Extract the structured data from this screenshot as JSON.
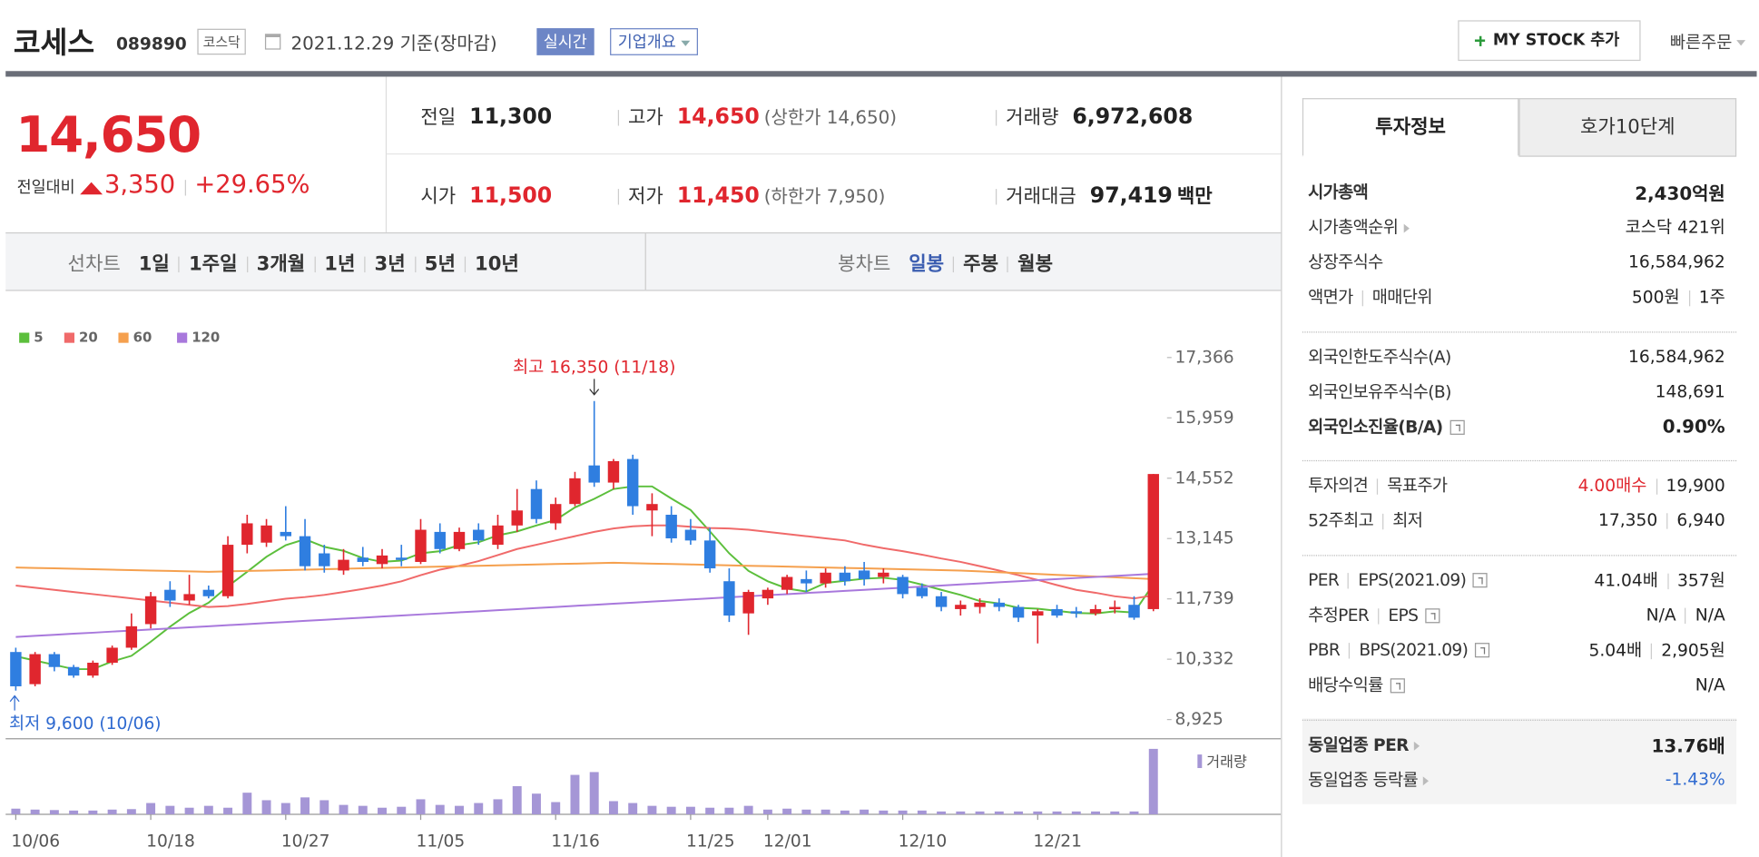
{
  "header": {
    "name": "코세스",
    "code": "089890",
    "market": "코스닥",
    "date": "2021.12.29 기준(장마감)",
    "realtime": "실시간",
    "overview": "기업개요",
    "my_stock": "MY STOCK 추가",
    "quick_order": "빠른주문"
  },
  "price": {
    "current": "14,650",
    "change_label": "전일대비",
    "change": "3,350",
    "change_rate": "+29.65%"
  },
  "summary": [
    [
      {
        "label": "전일",
        "value": "11,300"
      },
      {
        "label": "고가",
        "value": "14,650",
        "note": "(상한가 14,650)"
      },
      {
        "label": "거래량",
        "value": "6,972,608"
      }
    ],
    [
      {
        "label": "시가",
        "value": "11,500"
      },
      {
        "label": "저가",
        "value": "11,450",
        "note": "(하한가 7,950)"
      },
      {
        "label": "거래대금",
        "value": "97,419",
        "unit": "백만"
      }
    ]
  ],
  "chart_tabs": {
    "line_label": "선차트",
    "line_periods": [
      "1일",
      "1주일",
      "3개월",
      "1년",
      "3년",
      "5년",
      "10년"
    ],
    "candle_label": "봉차트",
    "candle_periods": [
      "일봉",
      "주봉",
      "월봉"
    ]
  },
  "sidebar": {
    "tabs": [
      "투자정보",
      "호가10단계"
    ],
    "groups": [
      [
        {
          "label": [
            "시가총액"
          ],
          "value": [
            "2,430억원"
          ]
        },
        {
          "label": [
            "시가총액순위"
          ],
          "value": [
            "코스닥 421위"
          ]
        },
        {
          "label": [
            "상장주식수"
          ],
          "value": [
            "16,584,962"
          ]
        },
        {
          "label": [
            "액면가",
            "매매단위"
          ],
          "value": [
            "500원",
            "1주"
          ]
        }
      ],
      [
        {
          "label": [
            "외국인한도주식수(A)"
          ],
          "value": [
            "16,584,962"
          ]
        },
        {
          "label": [
            "외국인보유주식수(B)"
          ],
          "value": [
            "148,691"
          ]
        },
        {
          "label": [
            "외국인소진율(B/A)"
          ],
          "value": [
            "0.90%"
          ]
        }
      ],
      [
        {
          "label": [
            "투자의견",
            "목표주가"
          ],
          "value": [
            "4.00매수",
            "19,900"
          ]
        },
        {
          "label": [
            "52주최고",
            "최저"
          ],
          "value": [
            "17,350",
            "6,940"
          ]
        }
      ],
      [
        {
          "label": [
            "PER",
            "EPS(2021.09)"
          ],
          "value": [
            "41.04배",
            "357원"
          ]
        },
        {
          "label": [
            "추정PER",
            "EPS"
          ],
          "value": [
            "N/A",
            "N/A"
          ]
        },
        {
          "label": [
            "PBR",
            "BPS(2021.09)"
          ],
          "value": [
            "5.04배",
            "2,905원"
          ]
        },
        {
          "label": [
            "배당수익률"
          ],
          "value": [
            "N/A"
          ]
        }
      ],
      [
        {
          "label": [
            "동일업종 PER"
          ],
          "value": [
            "13.76배"
          ]
        },
        {
          "label": [
            "동일업종 등락률"
          ],
          "value": [
            "-1.43%"
          ]
        }
      ]
    ]
  },
  "chart_data": {
    "type": "candlestick",
    "categories": [
      "10/06",
      null,
      null,
      null,
      null,
      null,
      null,
      "10/18",
      null,
      null,
      null,
      null,
      null,
      null,
      "10/27",
      null,
      null,
      null,
      null,
      null,
      null,
      "11/05",
      null,
      null,
      null,
      null,
      null,
      null,
      "11/16",
      null,
      null,
      null,
      null,
      null,
      null,
      "11/25",
      null,
      null,
      null,
      "12/01",
      null,
      null,
      null,
      null,
      null,
      null,
      "12/10",
      null,
      null,
      null,
      null,
      null,
      null,
      "12/21",
      null,
      null,
      null,
      null,
      null,
      null
    ],
    "ohlc": [
      [
        10500,
        10600,
        9600,
        9700
      ],
      [
        9750,
        10500,
        9700,
        10450
      ],
      [
        10450,
        10500,
        10050,
        10150
      ],
      [
        10150,
        10200,
        9900,
        9950
      ],
      [
        9950,
        10300,
        9900,
        10250
      ],
      [
        10250,
        10650,
        10200,
        10600
      ],
      [
        10600,
        11400,
        10550,
        11100
      ],
      [
        11150,
        11900,
        11050,
        11800
      ],
      [
        11950,
        12150,
        11550,
        11700
      ],
      [
        11700,
        12300,
        11600,
        11850
      ],
      [
        11950,
        12050,
        11750,
        11800
      ],
      [
        11800,
        13200,
        11750,
        13000
      ],
      [
        13000,
        13700,
        12800,
        13500
      ],
      [
        13050,
        13600,
        12950,
        13450
      ],
      [
        13300,
        13900,
        13100,
        13200
      ],
      [
        13200,
        13600,
        12400,
        12500
      ],
      [
        12800,
        13000,
        12350,
        12500
      ],
      [
        12400,
        12900,
        12300,
        12650
      ],
      [
        12700,
        12950,
        12500,
        12600
      ],
      [
        12550,
        12900,
        12450,
        12750
      ],
      [
        12700,
        13000,
        12500,
        12650
      ],
      [
        12600,
        13600,
        12550,
        13350
      ],
      [
        13300,
        13500,
        12800,
        12900
      ],
      [
        12900,
        13400,
        12850,
        13300
      ],
      [
        13350,
        13500,
        13000,
        13100
      ],
      [
        13000,
        13700,
        12900,
        13450
      ],
      [
        13450,
        14300,
        13300,
        13800
      ],
      [
        14300,
        14500,
        13500,
        13600
      ],
      [
        13500,
        14100,
        13350,
        13950
      ],
      [
        13950,
        14700,
        13900,
        14550
      ],
      [
        14850,
        16350,
        14350,
        14450
      ],
      [
        14450,
        15000,
        14300,
        14950
      ],
      [
        15000,
        15100,
        13700,
        13900
      ],
      [
        13800,
        14200,
        13200,
        13950
      ],
      [
        13700,
        13900,
        13050,
        13150
      ],
      [
        13350,
        13600,
        13000,
        13100
      ],
      [
        13100,
        13400,
        12350,
        12450
      ],
      [
        12150,
        12450,
        11200,
        11350
      ],
      [
        11400,
        11950,
        10900,
        11900
      ],
      [
        11750,
        12000,
        11600,
        11950
      ],
      [
        11950,
        12300,
        11850,
        12250
      ],
      [
        12200,
        12400,
        11900,
        12100
      ],
      [
        12100,
        12450,
        12000,
        12350
      ],
      [
        12350,
        12500,
        12050,
        12150
      ],
      [
        12400,
        12600,
        12050,
        12200
      ],
      [
        12250,
        12450,
        12100,
        12350
      ],
      [
        12250,
        12300,
        11750,
        11850
      ],
      [
        12000,
        12100,
        11750,
        11800
      ],
      [
        11800,
        11900,
        11450,
        11550
      ],
      [
        11500,
        11700,
        11350,
        11600
      ],
      [
        11550,
        11750,
        11400,
        11650
      ],
      [
        11650,
        11750,
        11450,
        11550
      ],
      [
        11550,
        11600,
        11200,
        11300
      ],
      [
        11350,
        11500,
        10700,
        11450
      ],
      [
        11500,
        11600,
        11300,
        11350
      ],
      [
        11450,
        11550,
        11300,
        11400
      ],
      [
        11400,
        11600,
        11350,
        11500
      ],
      [
        11500,
        11700,
        11400,
        11550
      ],
      [
        11600,
        11800,
        11250,
        11300
      ],
      [
        11500,
        14650,
        11450,
        14650
      ]
    ],
    "up_color": "#e0262e",
    "down_color": "#2f7ee0",
    "series": [
      {
        "name": "5",
        "color": "#5cbf3c",
        "values": [
          10400,
          10300,
          10200,
          10100,
          10100,
          10280,
          10410,
          10740,
          11090,
          11410,
          11650,
          12030,
          12370,
          12720,
          12990,
          13130,
          12950,
          12860,
          12690,
          12600,
          12630,
          12800,
          12850,
          12990,
          13060,
          13220,
          13310,
          13450,
          13580,
          13870,
          14070,
          14300,
          14360,
          14360,
          14080,
          13810,
          13310,
          12800,
          12390,
          12150,
          11980,
          11910,
          12110,
          12160,
          12210,
          12230,
          12180,
          12070,
          11950,
          11830,
          11690,
          11630,
          11530,
          11510,
          11460,
          11410,
          11400,
          11450,
          11420,
          12080
        ]
      },
      {
        "name": "20",
        "color": "#f06a6a",
        "values": [
          12050,
          12000,
          11950,
          11900,
          11850,
          11800,
          11750,
          11700,
          11650,
          11600,
          11550,
          11570,
          11620,
          11680,
          11740,
          11780,
          11830,
          11900,
          11970,
          12050,
          12150,
          12290,
          12420,
          12510,
          12620,
          12760,
          12900,
          13000,
          13100,
          13200,
          13300,
          13380,
          13430,
          13450,
          13450,
          13420,
          13390,
          13380,
          13350,
          13300,
          13250,
          13200,
          13150,
          13100,
          13000,
          12920,
          12850,
          12770,
          12680,
          12600,
          12500,
          12400,
          12290,
          12180,
          12060,
          11950,
          11880,
          11800,
          11750,
          11820
        ]
      },
      {
        "name": "60",
        "color": "#f5a04e",
        "values": [
          12470,
          12460,
          12450,
          12440,
          12430,
          12420,
          12410,
          12400,
          12390,
          12380,
          12370,
          12380,
          12390,
          12400,
          12410,
          12420,
          12430,
          12440,
          12450,
          12460,
          12470,
          12480,
          12490,
          12500,
          12510,
          12520,
          12530,
          12540,
          12550,
          12560,
          12570,
          12580,
          12570,
          12560,
          12550,
          12540,
          12530,
          12520,
          12510,
          12500,
          12490,
          12480,
          12470,
          12460,
          12450,
          12440,
          12430,
          12420,
          12410,
          12400,
          12380,
          12360,
          12340,
          12320,
          12300,
          12280,
          12260,
          12240,
          12220,
          12200
        ]
      },
      {
        "name": "120",
        "color": "#a878dc",
        "values": [
          10850,
          10875,
          10900,
          10925,
          10950,
          10975,
          11000,
          11025,
          11050,
          11075,
          11100,
          11125,
          11150,
          11175,
          11200,
          11225,
          11250,
          11275,
          11300,
          11325,
          11350,
          11375,
          11400,
          11425,
          11450,
          11475,
          11500,
          11525,
          11550,
          11575,
          11600,
          11625,
          11650,
          11675,
          11700,
          11725,
          11750,
          11775,
          11800,
          11825,
          11850,
          11875,
          11900,
          11925,
          11950,
          11975,
          12000,
          12025,
          12050,
          12075,
          12100,
          12125,
          12150,
          12175,
          12200,
          12225,
          12250,
          12275,
          12300,
          12325
        ]
      }
    ],
    "volume": {
      "name": "거래량",
      "color": "#a596d6",
      "values": [
        600000,
        500000,
        450000,
        400000,
        400000,
        500000,
        550000,
        1200000,
        900000,
        700000,
        900000,
        700000,
        2300000,
        1500000,
        1200000,
        1800000,
        1500000,
        1000000,
        900000,
        700000,
        800000,
        1600000,
        1000000,
        900000,
        1200000,
        1600000,
        3000000,
        2200000,
        1300000,
        4200000,
        4500000,
        1400000,
        1200000,
        900000,
        800000,
        800000,
        700000,
        700000,
        900000,
        500000,
        600000,
        500000,
        500000,
        400000,
        500000,
        400000,
        400000,
        400000,
        300000,
        300000,
        300000,
        300000,
        300000,
        300000,
        300000,
        300000,
        300000,
        300000,
        300000,
        6972608
      ]
    },
    "ylim": [
      8925,
      17366
    ],
    "yticks": [
      {
        "value": 8925,
        "label": "8,925"
      },
      {
        "value": 10332,
        "label": "10,332"
      },
      {
        "value": 11739,
        "label": "11,739"
      },
      {
        "value": 13145,
        "label": "13,145"
      },
      {
        "value": 14552,
        "label": "14,552"
      },
      {
        "value": 15959,
        "label": "15,959"
      },
      {
        "value": 17366,
        "label": "17,366"
      }
    ],
    "annotations": {
      "high": "최고 16,350 (11/18)",
      "low": "최저 9,600 (10/06)"
    }
  }
}
